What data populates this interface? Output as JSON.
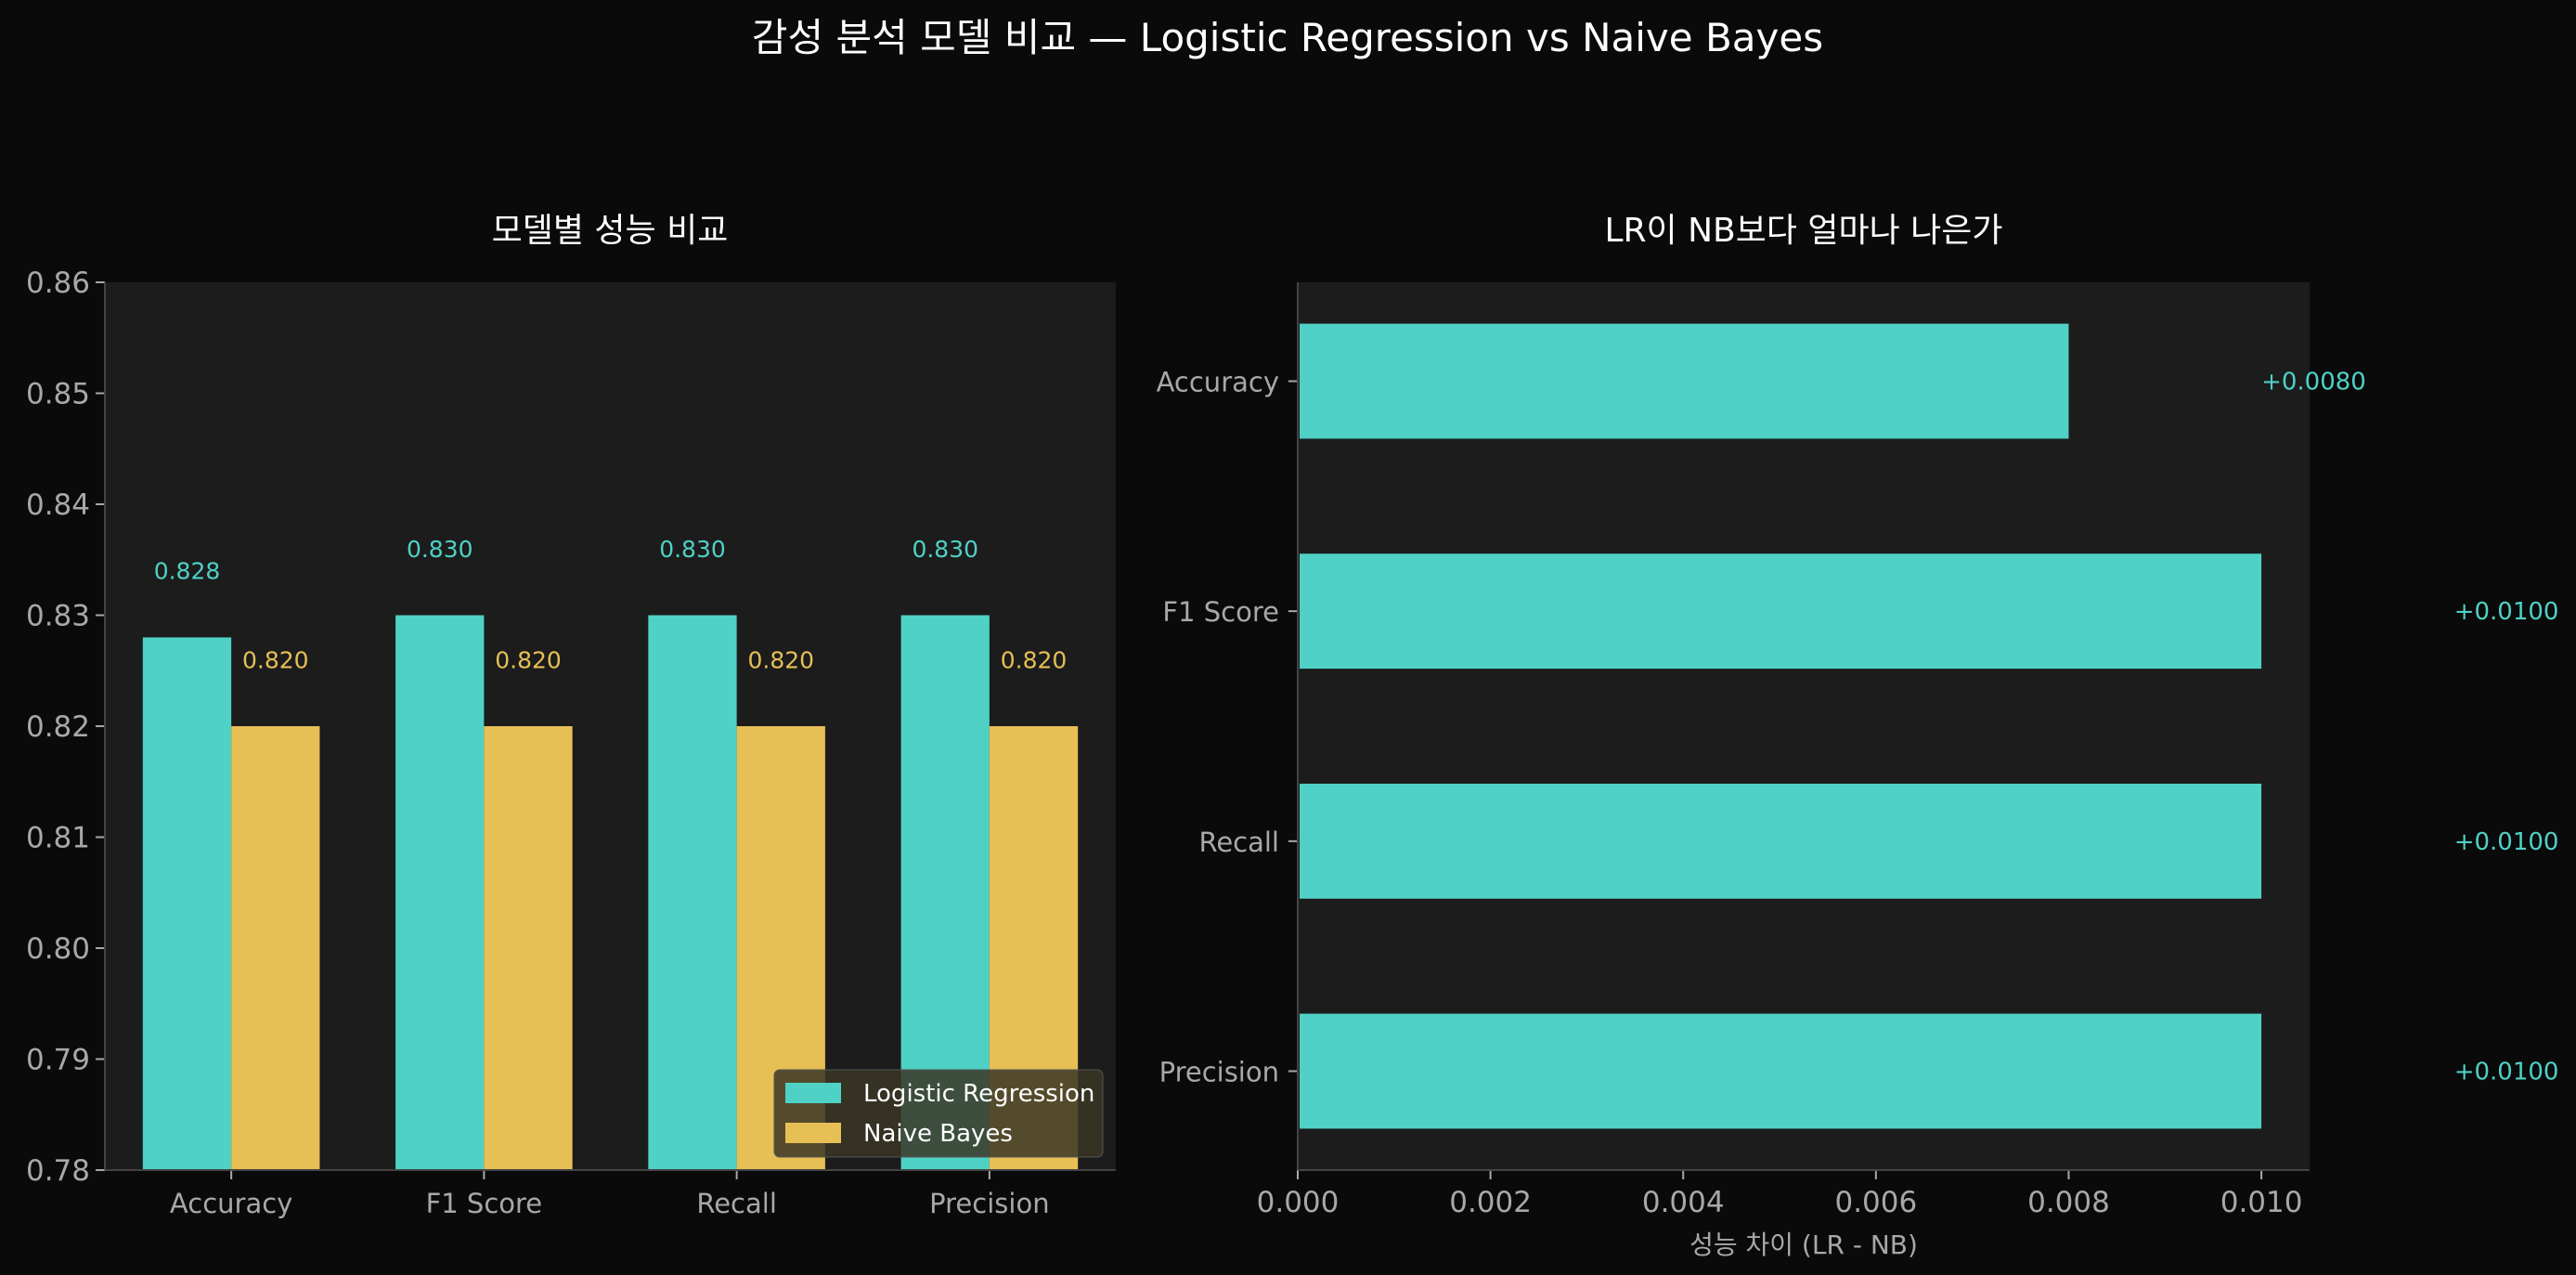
{
  "title": "감성 분석 모델 비교 — Logistic Regression vs Naive Bayes",
  "colors": {
    "background": "#0a0a0a",
    "axes_bg": "#1c1c1c",
    "lr": "#4fd1c5",
    "nb": "#e6bf55",
    "tick": "#a8a8a8",
    "title": "#ffffff"
  },
  "chart_data": [
    {
      "type": "bar",
      "title": "모델별 성능 비교",
      "xlabel": "",
      "ylabel": "",
      "categories": [
        "Accuracy",
        "F1 Score",
        "Recall",
        "Precision"
      ],
      "series": [
        {
          "name": "Logistic Regression",
          "values": [
            0.828,
            0.83,
            0.83,
            0.83
          ],
          "labels": [
            "0.828",
            "0.830",
            "0.830",
            "0.830"
          ]
        },
        {
          "name": "Naive Bayes",
          "values": [
            0.82,
            0.82,
            0.82,
            0.82
          ],
          "labels": [
            "0.820",
            "0.820",
            "0.820",
            "0.820"
          ]
        }
      ],
      "ylim": [
        0.78,
        0.86
      ],
      "yticks": [
        "0.78",
        "0.79",
        "0.80",
        "0.81",
        "0.82",
        "0.83",
        "0.84",
        "0.85",
        "0.86"
      ],
      "grid": false,
      "legend": "lower right"
    },
    {
      "type": "bar",
      "orientation": "horizontal",
      "title": "LR이 NB보다 얼마나 나은가",
      "xlabel": "성능 차이 (LR - NB)",
      "ylabel": "",
      "categories": [
        "Accuracy",
        "F1 Score",
        "Recall",
        "Precision"
      ],
      "values": [
        0.008,
        0.01,
        0.01,
        0.01
      ],
      "labels": [
        "+0.0080",
        "+0.0100",
        "+0.0100",
        "+0.0100"
      ],
      "xlim": [
        0,
        0.0105
      ],
      "xticks": [
        "0.000",
        "0.002",
        "0.004",
        "0.006",
        "0.008",
        "0.010"
      ],
      "grid": false
    }
  ]
}
